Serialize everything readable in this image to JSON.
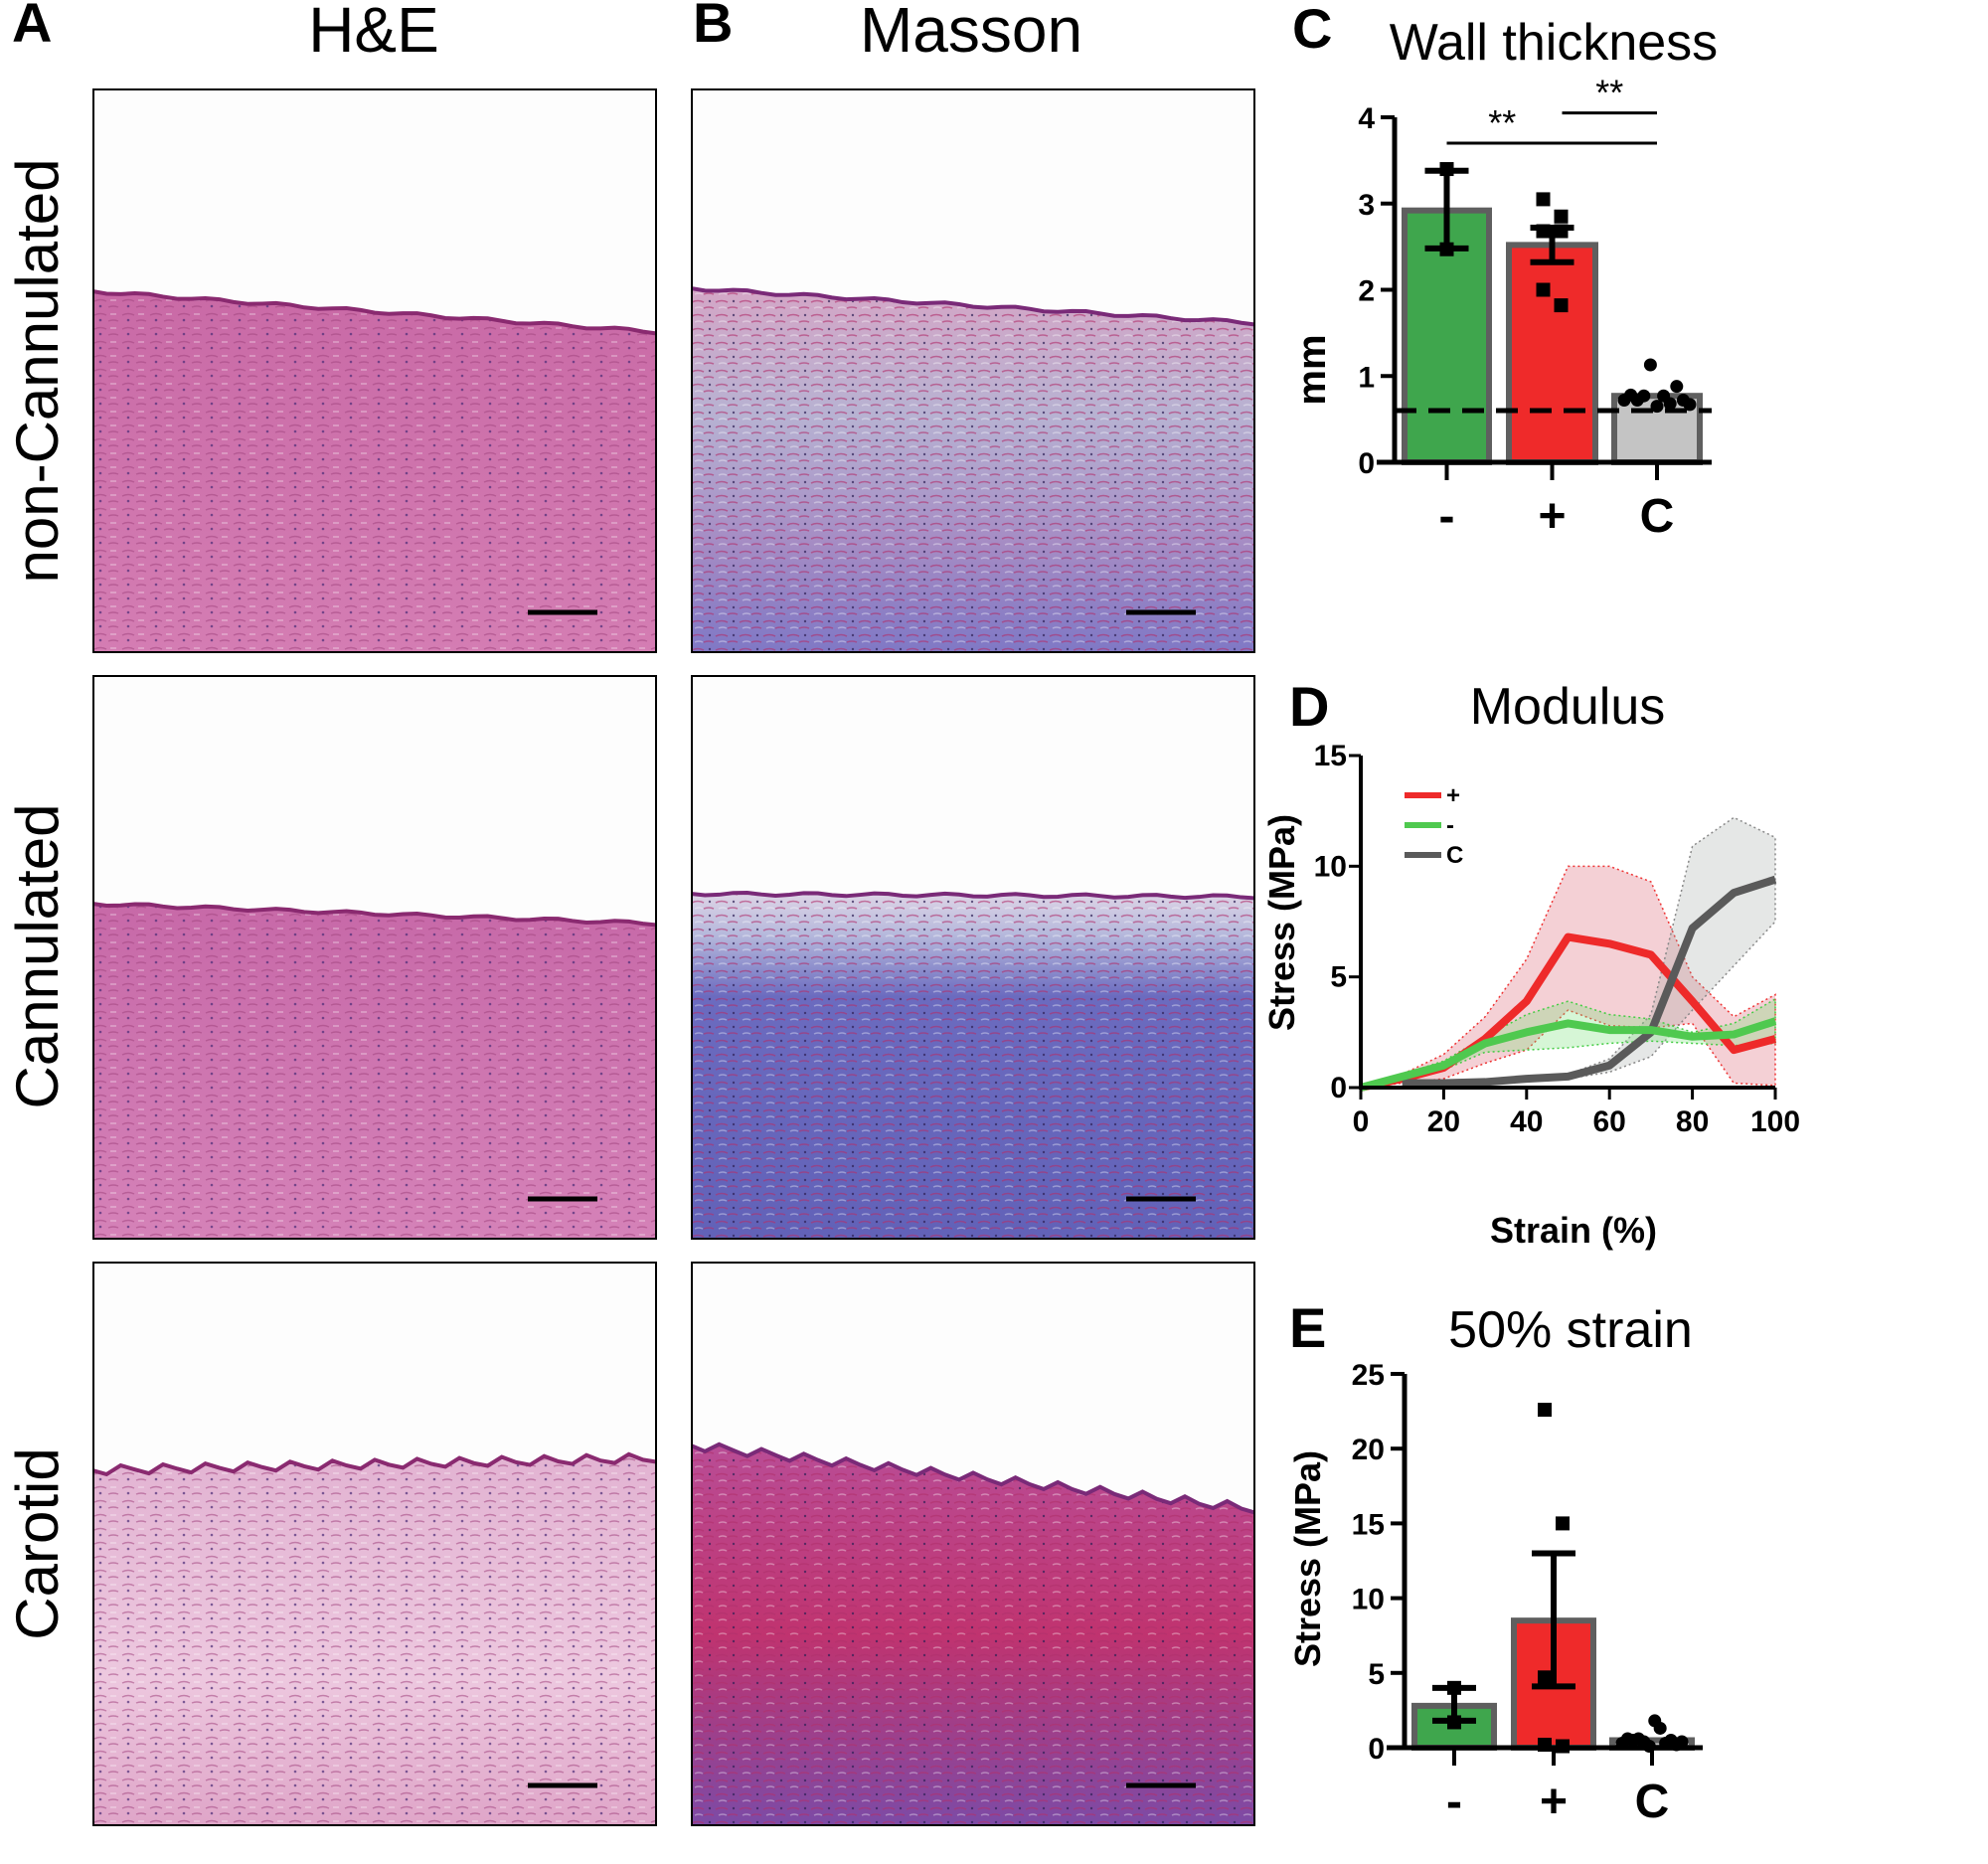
{
  "panels": {
    "A": {
      "letter": "A",
      "title": "H&E"
    },
    "B": {
      "letter": "B",
      "title": "Masson"
    },
    "C": {
      "letter": "C"
    },
    "D": {
      "letter": "D"
    },
    "E": {
      "letter": "E"
    }
  },
  "row_labels": [
    "non-Cannulated",
    "Cannulated",
    "Carotid"
  ],
  "colors": {
    "minus": "#3fa64d",
    "plus": "#ef2a2a",
    "control": "#c4c4c4",
    "bar_edge": "#5f5f5f",
    "line_minus": "#4fc94f",
    "line_plus": "#ee2a2a",
    "line_control": "#5a5a5a"
  },
  "chart_data": [
    {
      "panel": "C",
      "type": "bar",
      "title": "Wall thickness",
      "ylabel": "mm",
      "categories": [
        "-",
        "+",
        "C"
      ],
      "values": [
        2.92,
        2.52,
        0.77
      ],
      "error_low": [
        2.48,
        2.32,
        null
      ],
      "error_high": [
        3.38,
        2.72,
        null
      ],
      "points": [
        [
          3.4,
          2.47
        ],
        [
          3.05,
          2.85,
          2.68,
          2.68,
          2.0,
          1.82
        ],
        [
          0.72,
          0.78,
          0.72,
          0.77,
          1.13,
          0.65,
          0.77,
          0.68,
          0.88,
          0.72,
          0.67
        ]
      ],
      "reference_line": 0.6,
      "ylim": [
        0,
        4
      ],
      "yticks": [
        "0",
        "1",
        "2",
        "3",
        "4"
      ],
      "significance": [
        {
          "from": "-",
          "to": "C",
          "label": "**",
          "y": 3.7
        },
        {
          "from": "+",
          "to": "C",
          "label": "**",
          "y": 4.05
        }
      ]
    },
    {
      "panel": "D",
      "type": "line",
      "title": "Modulus",
      "xlabel": "Strain (%)",
      "ylabel": "Stress (MPa)",
      "xlim": [
        0,
        100
      ],
      "ylim": [
        0,
        15
      ],
      "xticks": [
        "0",
        "20",
        "40",
        "60",
        "80",
        "100"
      ],
      "yticks": [
        "0",
        "5",
        "10",
        "15"
      ],
      "legend_position": "top-left",
      "series": [
        {
          "name": "+",
          "x": [
            0,
            10,
            20,
            30,
            40,
            50,
            60,
            70,
            80,
            90,
            100
          ],
          "y": [
            0,
            0.4,
            0.9,
            2.2,
            3.9,
            6.8,
            6.5,
            6.0,
            3.9,
            1.7,
            2.2
          ],
          "upper": [
            0,
            0.6,
            1.5,
            3.2,
            5.8,
            10.0,
            10.0,
            9.3,
            5.0,
            3.2,
            4.2
          ],
          "lower": [
            0,
            0.2,
            0.4,
            1.1,
            1.7,
            3.5,
            2.8,
            2.7,
            2.9,
            0.2,
            0.1
          ]
        },
        {
          "name": "-",
          "x": [
            0,
            10,
            20,
            30,
            40,
            50,
            60,
            70,
            80,
            90,
            100
          ],
          "y": [
            0,
            0.5,
            1.0,
            2.0,
            2.5,
            2.9,
            2.6,
            2.6,
            2.3,
            2.4,
            3.0
          ],
          "upper": [
            0,
            0.6,
            1.2,
            2.3,
            3.3,
            3.9,
            3.3,
            3.1,
            2.5,
            2.9,
            4.0
          ],
          "lower": [
            0,
            0.4,
            0.8,
            1.6,
            1.7,
            1.8,
            2.0,
            2.1,
            2.0,
            1.9,
            2.0
          ]
        },
        {
          "name": "C",
          "x": [
            10,
            20,
            30,
            40,
            50,
            60,
            70,
            80,
            90,
            100
          ],
          "y": [
            0.2,
            0.2,
            0.25,
            0.4,
            0.5,
            1.0,
            2.5,
            7.2,
            8.8,
            9.4
          ],
          "upper": [
            0.2,
            0.2,
            0.3,
            0.4,
            0.6,
            1.3,
            3.3,
            10.9,
            12.2,
            11.3
          ],
          "lower": [
            0.2,
            0.2,
            0.2,
            0.3,
            0.4,
            0.7,
            1.4,
            3.5,
            5.5,
            7.5
          ]
        }
      ]
    },
    {
      "panel": "E",
      "type": "bar",
      "title": "50% strain",
      "ylabel": "Stress (MPa)",
      "categories": [
        "-",
        "+",
        "C"
      ],
      "values": [
        2.8,
        8.5,
        0.5
      ],
      "error_low": [
        1.8,
        4.1,
        null
      ],
      "error_high": [
        4.0,
        13.0,
        null
      ],
      "points": [
        [
          4.0,
          1.7
        ],
        [
          22.6,
          15.0,
          4.7,
          0.1,
          0.2
        ],
        [
          0.3,
          0.6,
          0.5,
          0.6,
          0.4,
          0.1,
          1.8,
          1.3,
          0.3,
          0.5,
          0.2,
          0.4
        ]
      ],
      "ylim": [
        0,
        25
      ],
      "yticks": [
        "0",
        "5",
        "10",
        "15",
        "20",
        "25"
      ]
    }
  ]
}
